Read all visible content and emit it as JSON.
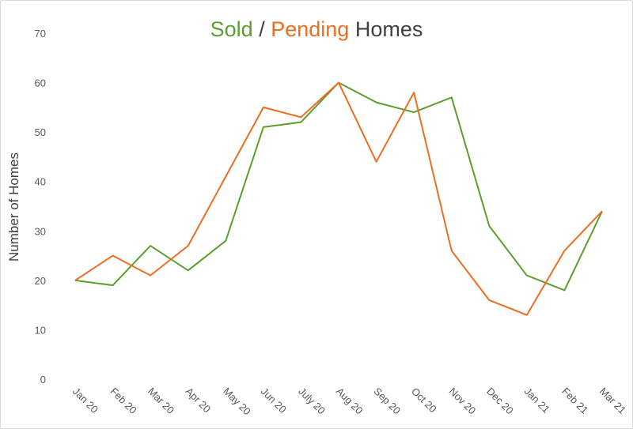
{
  "chart_data": {
    "type": "line",
    "title": {
      "part1": "Sold",
      "sep": " / ",
      "part2": "Pending",
      "part3": " Homes"
    },
    "xlabel": "",
    "ylabel": "Number of Homes",
    "ylim": [
      0,
      70
    ],
    "yticks": [
      "0",
      "10",
      "20",
      "30",
      "40",
      "50",
      "60",
      "70"
    ],
    "categories": [
      "Jan 20",
      "Feb 20",
      "Mar 20",
      "Apr 20",
      "May 20",
      "Jun 20",
      "July 20",
      "Aug 20",
      "Sep 20",
      "Oct 20",
      "Nov 20",
      "Dec 20",
      "Jan 21",
      "Feb 21",
      "Mar 21"
    ],
    "grid": false,
    "legend": "none",
    "series": [
      {
        "name": "Sold",
        "color": "#5b9e2e",
        "values": [
          20,
          19,
          27,
          22,
          28,
          51,
          52,
          60,
          56,
          54,
          57,
          31,
          21,
          18,
          34
        ]
      },
      {
        "name": "Pending",
        "color": "#ed6d22",
        "values": [
          20,
          25,
          21,
          27,
          41,
          55,
          53,
          60,
          44,
          58,
          26,
          16,
          13,
          26,
          34
        ]
      }
    ]
  },
  "colors": {
    "sold": "#5b9e2e",
    "pending": "#ed6d22",
    "text": "#404040"
  }
}
